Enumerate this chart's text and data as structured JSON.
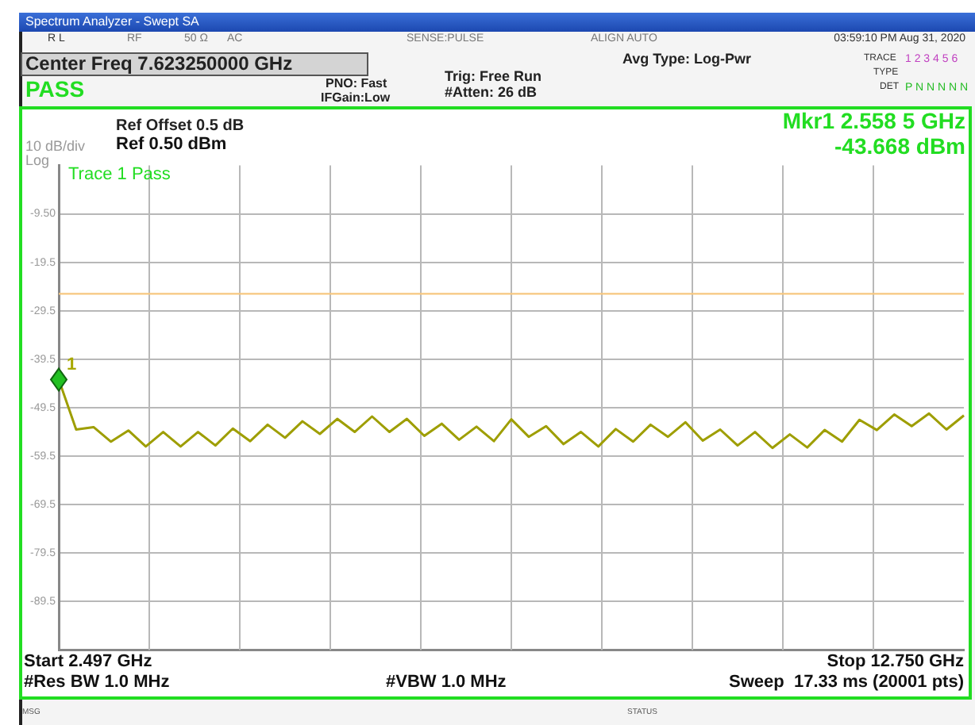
{
  "chart_data": {
    "type": "line",
    "title": "Spectrum Analyzer - Swept SA",
    "categories": [
      null,
      null,
      null,
      null,
      null,
      null,
      null,
      null,
      null,
      null,
      null,
      null,
      null,
      null,
      null,
      null,
      null,
      null,
      null,
      null,
      null,
      null,
      null,
      null,
      null,
      null,
      null,
      null,
      null,
      null,
      null,
      null,
      null,
      null,
      null,
      null,
      null,
      null,
      null,
      null,
      null,
      null,
      null,
      null,
      null,
      null,
      null,
      null,
      null,
      null,
      null,
      null,
      null
    ],
    "series": [
      {
        "type": "line",
        "color": "#9e9e00",
        "values": [
          -43.7,
          -54,
          -53.5,
          -56.5,
          -54.2,
          -57.5,
          -54.5,
          -57.5,
          -54.5,
          -57.3,
          -53.8,
          -56.4,
          -53,
          -55.7,
          -52.3,
          -54.9,
          -51.8,
          -54.5,
          -51.3,
          -54.5,
          -51.8,
          -55.3,
          -52.8,
          -56.1,
          -53.4,
          -56.4,
          -51.9,
          -55.5,
          -53.3,
          -57,
          -54.5,
          -57.5,
          -53.9,
          -56.5,
          -53,
          -55.5,
          -52.5,
          -56.3,
          -54,
          -57.3,
          -54.5,
          -57.8,
          -55,
          -57.7,
          -54.1,
          -56.5,
          -52,
          -54.1,
          -50.9,
          -53.3,
          -50.7,
          -54,
          -51.1
        ]
      }
    ],
    "ylim": [
      -99.5,
      0.5
    ],
    "yticks": [
      {
        "value": -9.5,
        "label": "-9.50"
      },
      {
        "value": -19.5,
        "label": "-19.5"
      },
      {
        "value": -29.5,
        "label": "-29.5"
      },
      {
        "value": -39.5,
        "label": "-39.5"
      },
      {
        "value": -49.5,
        "label": "-49.5"
      },
      {
        "value": -59.5,
        "label": "-59.5"
      },
      {
        "value": -69.5,
        "label": "-69.5"
      },
      {
        "value": -79.5,
        "label": "-79.5"
      },
      {
        "value": -89.5,
        "label": "-89.5"
      }
    ],
    "ref_lines": [
      {
        "axis": "y",
        "value": -26,
        "color": "#f7c77f"
      }
    ],
    "grid": true,
    "legend": false,
    "tick_labels": "y",
    "marker": "none",
    "line_style": "solid",
    "annotations": [
      "R L",
      "RF",
      "50 Ω",
      "AC",
      "SENSE:PULSE",
      "ALIGN AUTO",
      "03:59:10 PM Aug 31, 2020",
      "Center Freq 7.623250000 GHz",
      "PASS",
      "PNO: Fast",
      "IFGain:Low",
      "Trig: Free Run",
      "#Atten: 26 dB",
      "Avg Type: Log-Pwr",
      "TRACE",
      "1 2 3 4 5 6",
      "TYPE",
      "DET",
      "P N N N N N",
      "Ref Offset 0.5 dB",
      "Ref 0.50 dBm",
      "10 dB/div",
      "Log",
      "Mkr1 2.558 5 GHz",
      "-43.668 dBm",
      "Trace 1 Pass",
      "Start 2.497 GHz",
      "Stop 12.750 GHz",
      "#Res BW 1.0 MHz",
      "#VBW 1.0 MHz",
      "Sweep  17.33 ms (20001 pts)",
      "MSG",
      "STATUS",
      "1"
    ]
  }
}
